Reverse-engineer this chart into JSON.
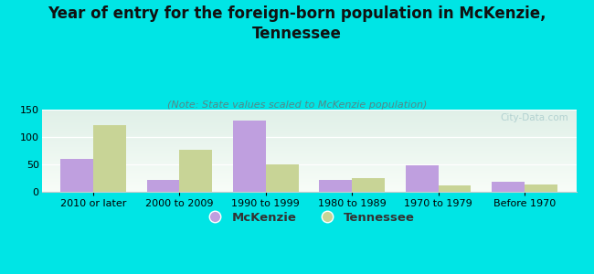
{
  "title": "Year of entry for the foreign-born population in McKenzie,\nTennessee",
  "subtitle": "(Note: State values scaled to McKenzie population)",
  "categories": [
    "2010 or later",
    "2000 to 2009",
    "1990 to 1999",
    "1980 to 1989",
    "1970 to 1979",
    "Before 1970"
  ],
  "mckenzie_values": [
    60,
    22,
    130,
    21,
    49,
    18
  ],
  "tennessee_values": [
    121,
    77,
    50,
    25,
    12,
    14
  ],
  "mckenzie_color": "#bf9fdf",
  "tennessee_color": "#c8d496",
  "background_color": "#00e5e5",
  "plot_bg_top": "#e0f0e8",
  "plot_bg_bottom": "#f8fdf8",
  "ylim": [
    0,
    150
  ],
  "yticks": [
    0,
    50,
    100,
    150
  ],
  "bar_width": 0.38,
  "title_fontsize": 12,
  "subtitle_fontsize": 8,
  "tick_fontsize": 8,
  "legend_fontsize": 9.5,
  "watermark": "City-Data.com",
  "watermark_color": "#aacccc",
  "subtitle_color": "#558888",
  "grid_color": "#d8ece0",
  "spine_color": "#cccccc"
}
